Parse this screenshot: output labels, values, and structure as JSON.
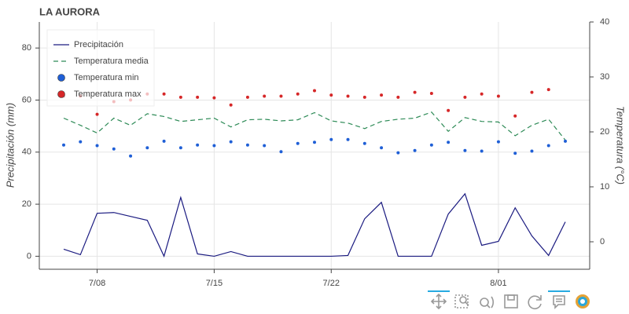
{
  "chart_data": {
    "type": "line",
    "title": "LA AURORA",
    "y_label": "Precipitación (mm)",
    "y2_label": "Temperatura (°C)",
    "x": [
      "7/06",
      "7/07",
      "7/08",
      "7/09",
      "7/10",
      "7/11",
      "7/12",
      "7/13",
      "7/14",
      "7/15",
      "7/16",
      "7/17",
      "7/18",
      "7/19",
      "7/20",
      "7/21",
      "7/22",
      "7/23",
      "7/24",
      "7/25",
      "7/26",
      "7/27",
      "7/28",
      "7/29",
      "7/30",
      "7/31",
      "8/01",
      "8/02",
      "8/03",
      "8/04",
      "8/05"
    ],
    "xticks": [
      "7/08",
      "7/15",
      "7/22",
      "8/01"
    ],
    "ylim": [
      -5,
      90
    ],
    "yticks": [
      0,
      20,
      40,
      60,
      80
    ],
    "y2lim": [
      -5,
      40
    ],
    "y2ticks": [
      0,
      10,
      20,
      30,
      40
    ],
    "grid": true,
    "legend": "top-left",
    "series": [
      {
        "name": "Precipitación",
        "type": "line",
        "color": "#1a1a80",
        "values": [
          2.7,
          0.6,
          16.5,
          16.8,
          15.3,
          13.8,
          0,
          22.6,
          0.9,
          0,
          1.8,
          0,
          0,
          0,
          0,
          0,
          0,
          0.3,
          14.4,
          20.7,
          0,
          0,
          0,
          16.2,
          24,
          4.2,
          5.7,
          18.6,
          7.8,
          0.3,
          13.2
        ]
      },
      {
        "name": "Temperatura media",
        "type": "line",
        "dash": true,
        "axis": "y2",
        "color": "#2e8b57",
        "values": [
          22.5,
          21.2,
          19.8,
          22.5,
          21.2,
          23.3,
          22.8,
          21.9,
          22.2,
          22.5,
          20.9,
          22.2,
          22.3,
          22.0,
          22.2,
          23.5,
          22.0,
          21.6,
          20.6,
          21.9,
          22.3,
          22.5,
          23.6,
          20.1,
          22.6,
          21.9,
          21.8,
          19.3,
          21.2,
          22.3,
          18.5
        ]
      },
      {
        "name": "Temperatura min",
        "type": "scatter",
        "axis": "y2",
        "color": "#1f5fd6",
        "values": [
          17.6,
          18.2,
          17.5,
          16.9,
          15.6,
          17.1,
          18.3,
          17.1,
          17.6,
          17.5,
          18.2,
          17.6,
          17.5,
          16.4,
          17.9,
          18.1,
          18.6,
          18.6,
          17.9,
          17.1,
          16.2,
          16.6,
          17.6,
          18.1,
          16.6,
          16.5,
          18.2,
          16.1,
          16.5,
          17.5,
          18.3
        ]
      },
      {
        "name": "Temperatura max",
        "type": "scatter",
        "axis": "y2",
        "color": "#d62728",
        "values": [
          26.5,
          26.5,
          23.2,
          25.5,
          25.8,
          26.9,
          26.9,
          26.3,
          26.3,
          26.2,
          24.9,
          26.3,
          26.5,
          26.5,
          26.9,
          27.5,
          26.7,
          26.5,
          26.3,
          26.7,
          26.3,
          27.2,
          27.0,
          23.9,
          26.3,
          26.9,
          26.5,
          22.9,
          27.2,
          27.7,
          null
        ]
      }
    ]
  }
}
